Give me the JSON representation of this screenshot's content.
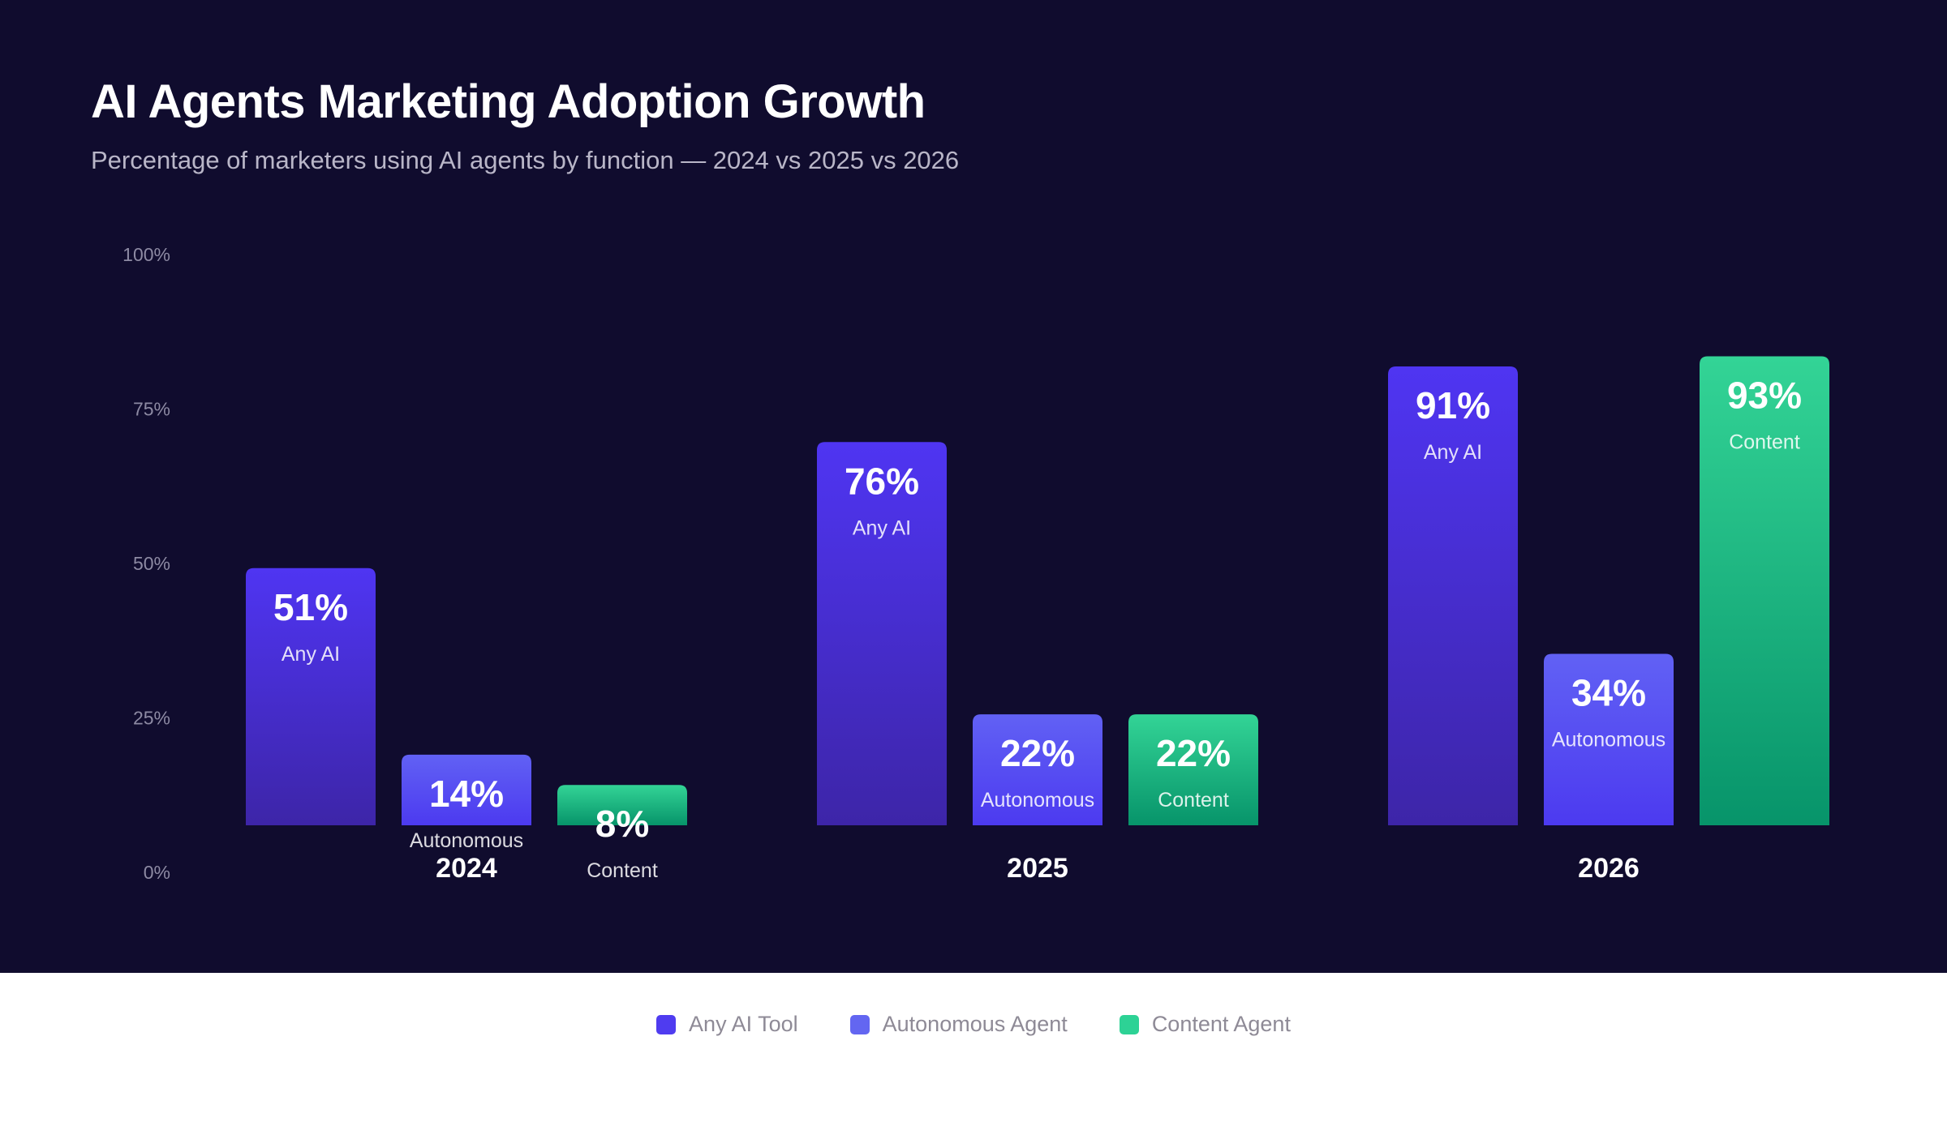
{
  "header": {
    "title": "AI Agents Marketing Adoption Growth",
    "subtitle": "Percentage of marketers using AI agents by function — 2024 vs 2025 vs 2026"
  },
  "legend": [
    {
      "label": "Any AI Tool",
      "color": "#4f3cf0"
    },
    {
      "label": "Autonomous Agent",
      "color": "#6366f1"
    },
    {
      "label": "Content Agent",
      "color": "#2dd295"
    }
  ],
  "chart_data": {
    "type": "bar",
    "title": "AI Agents Marketing Adoption Growth",
    "subtitle": "Percentage of marketers using AI agents by function — 2024 vs 2025 vs 2026",
    "categories": [
      "2024",
      "2025",
      "2026"
    ],
    "yticks": [
      "0%",
      "25%",
      "50%",
      "75%",
      "100%"
    ],
    "ylim": [
      0,
      100
    ],
    "grid": false,
    "legend_position": "bottom",
    "series": [
      {
        "name": "Any AI Tool",
        "short_label": "Any AI",
        "values": [
          51,
          76,
          91
        ],
        "display_labels": [
          "51%",
          "76%",
          "91%"
        ]
      },
      {
        "name": "Autonomous Agent",
        "short_label": "Autonomous",
        "values": [
          14,
          22,
          34
        ],
        "display_labels": [
          "14%",
          "22%",
          "34%"
        ]
      },
      {
        "name": "Content Agent",
        "short_label": "Content",
        "values": [
          8,
          22,
          93
        ],
        "display_labels": [
          "8%",
          "22%",
          "93%"
        ]
      }
    ]
  }
}
